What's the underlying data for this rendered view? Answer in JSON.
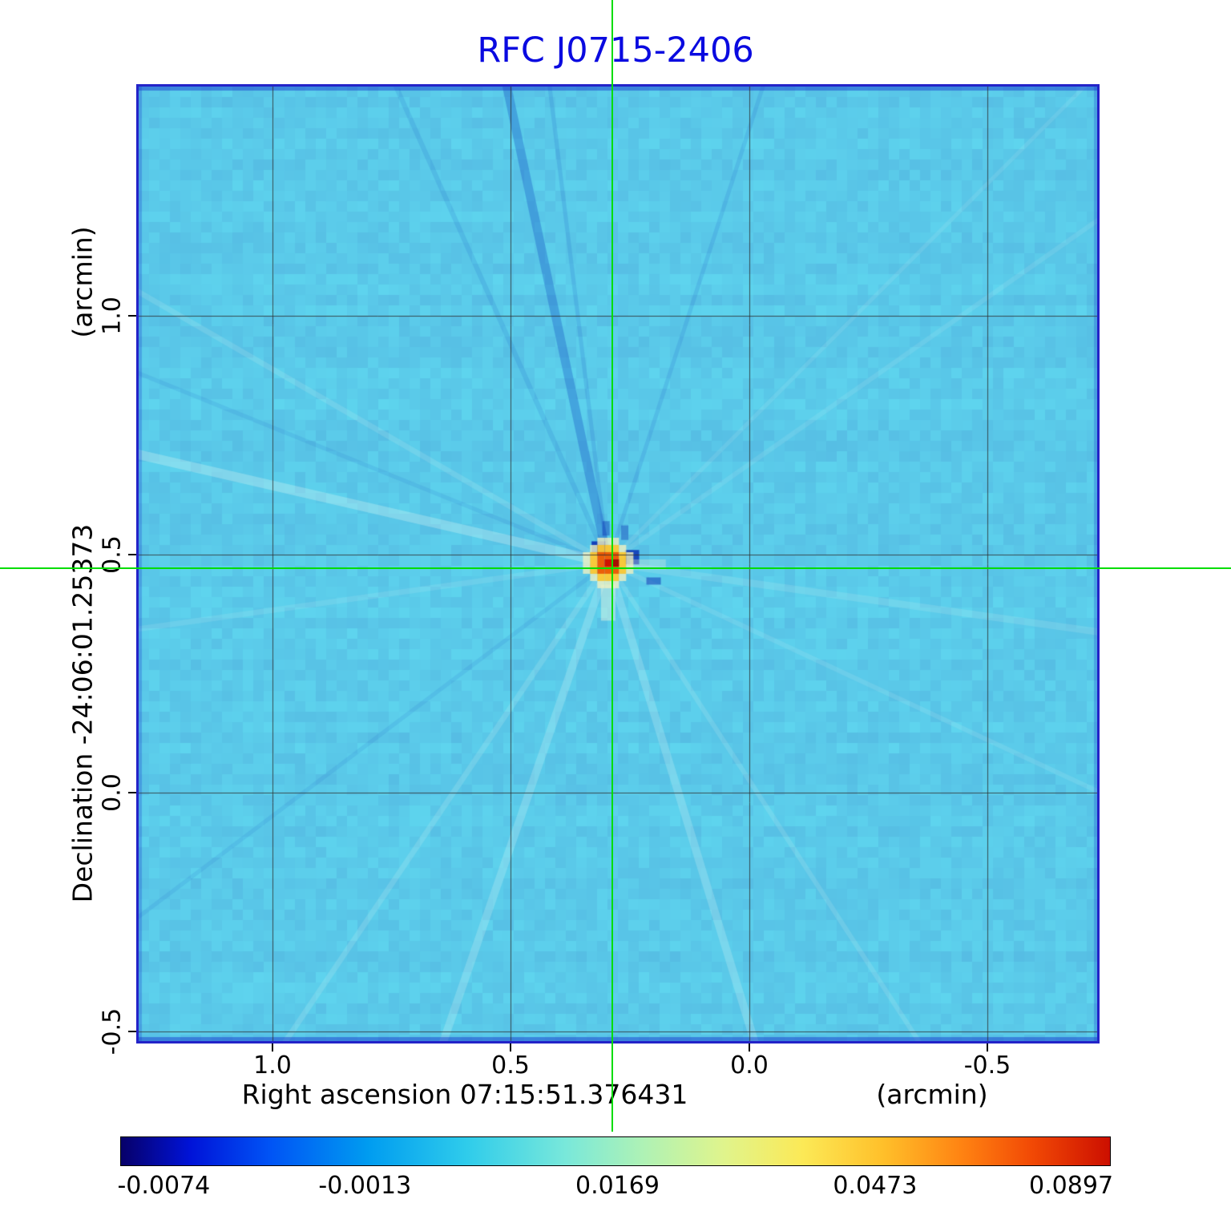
{
  "title": "RFC J0715-2406",
  "colors": {
    "title": "#0a0ae0",
    "crosshair": "#00dd00",
    "frame": "#2323c8",
    "map_base": "#5ac9e9",
    "grid": "#333333",
    "text": "#000000"
  },
  "axes": {
    "y_unit_label": "(arcmin)",
    "y_axis_label": "Declination  -24:06:01.25373",
    "y_tick_labels": [
      "1.0",
      "0.5",
      "0.0",
      "-0.5"
    ],
    "x_tick_labels": [
      "1.0",
      "0.5",
      "0.0",
      "-0.5"
    ],
    "x_axis_label": "Right ascension  07:15:51.376431",
    "x_unit_label": "(arcmin)"
  },
  "colorbar": {
    "tick_labels": [
      "-0.0074",
      "-0.0013",
      "0.0169",
      "0.0473",
      "0.0897"
    ],
    "gradient": [
      [
        "0%",
        "#070069"
      ],
      [
        "7%",
        "#0013d8"
      ],
      [
        "15%",
        "#0053f5"
      ],
      [
        "25%",
        "#009cf0"
      ],
      [
        "35%",
        "#2fcceb"
      ],
      [
        "45%",
        "#79e8da"
      ],
      [
        "53%",
        "#b0f2b4"
      ],
      [
        "61%",
        "#e0f48c"
      ],
      [
        "69%",
        "#fce956"
      ],
      [
        "77%",
        "#ffc02a"
      ],
      [
        "85%",
        "#ff8312"
      ],
      [
        "92%",
        "#f24a05"
      ],
      [
        "100%",
        "#cc0f00"
      ]
    ]
  },
  "chart_data": {
    "type": "heatmap",
    "title": "RFC J0715-2406",
    "xlabel": "Right ascension 07:15:51.376431 (arcmin)",
    "ylabel": "Declination -24:06:01.25373 (arcmin)",
    "x_range": [
      1.28,
      -0.73
    ],
    "y_range": [
      -0.52,
      1.48
    ],
    "x_ticks": [
      1.0,
      0.5,
      0.0,
      -0.5
    ],
    "y_ticks": [
      -0.5,
      0.0,
      0.5,
      1.0
    ],
    "grid": true,
    "value_scale_ticks": [
      -0.0074,
      -0.0013,
      0.0169,
      0.0473,
      0.0897
    ],
    "peak_value": 0.0897,
    "min_value": -0.0074,
    "background_value_approx": 0.005,
    "source_offset_arcmin": [
      0.287,
      0.47
    ],
    "crosshair_at_source": true,
    "artifacts": {
      "description": "interferometric sidelobe rays radiating from the compact source",
      "rays": [
        {
          "angle_deg": -102,
          "shade": "dark",
          "width": 11,
          "alpha": 0.33
        },
        {
          "angle_deg": -97,
          "shade": "dark",
          "width": 5,
          "alpha": 0.15
        },
        {
          "angle_deg": -114,
          "shade": "dark",
          "width": 6,
          "alpha": 0.13
        },
        {
          "angle_deg": -72,
          "shade": "dark",
          "width": 5,
          "alpha": 0.14
        },
        {
          "angle_deg": -167,
          "shade": "light",
          "width": 12,
          "alpha": 0.28
        },
        {
          "angle_deg": -158,
          "shade": "dark",
          "width": 5,
          "alpha": 0.1
        },
        {
          "angle_deg": -150,
          "shade": "light",
          "width": 7,
          "alpha": 0.14
        },
        {
          "angle_deg": 109,
          "shade": "light",
          "width": 10,
          "alpha": 0.22
        },
        {
          "angle_deg": 124,
          "shade": "light",
          "width": 7,
          "alpha": 0.16
        },
        {
          "angle_deg": 73,
          "shade": "light",
          "width": 10,
          "alpha": 0.22
        },
        {
          "angle_deg": 57,
          "shade": "light",
          "width": 6,
          "alpha": 0.14
        },
        {
          "angle_deg": 8,
          "shade": "light",
          "width": 9,
          "alpha": 0.14
        },
        {
          "angle_deg": 25,
          "shade": "light",
          "width": 6,
          "alpha": 0.12
        },
        {
          "angle_deg": -35,
          "shade": "light",
          "width": 6,
          "alpha": 0.11
        },
        {
          "angle_deg": -45,
          "shade": "light",
          "width": 5,
          "alpha": 0.1
        },
        {
          "angle_deg": 143,
          "shade": "dark",
          "width": 5,
          "alpha": 0.1
        },
        {
          "angle_deg": 172,
          "shade": "light",
          "width": 7,
          "alpha": 0.12
        }
      ]
    }
  }
}
